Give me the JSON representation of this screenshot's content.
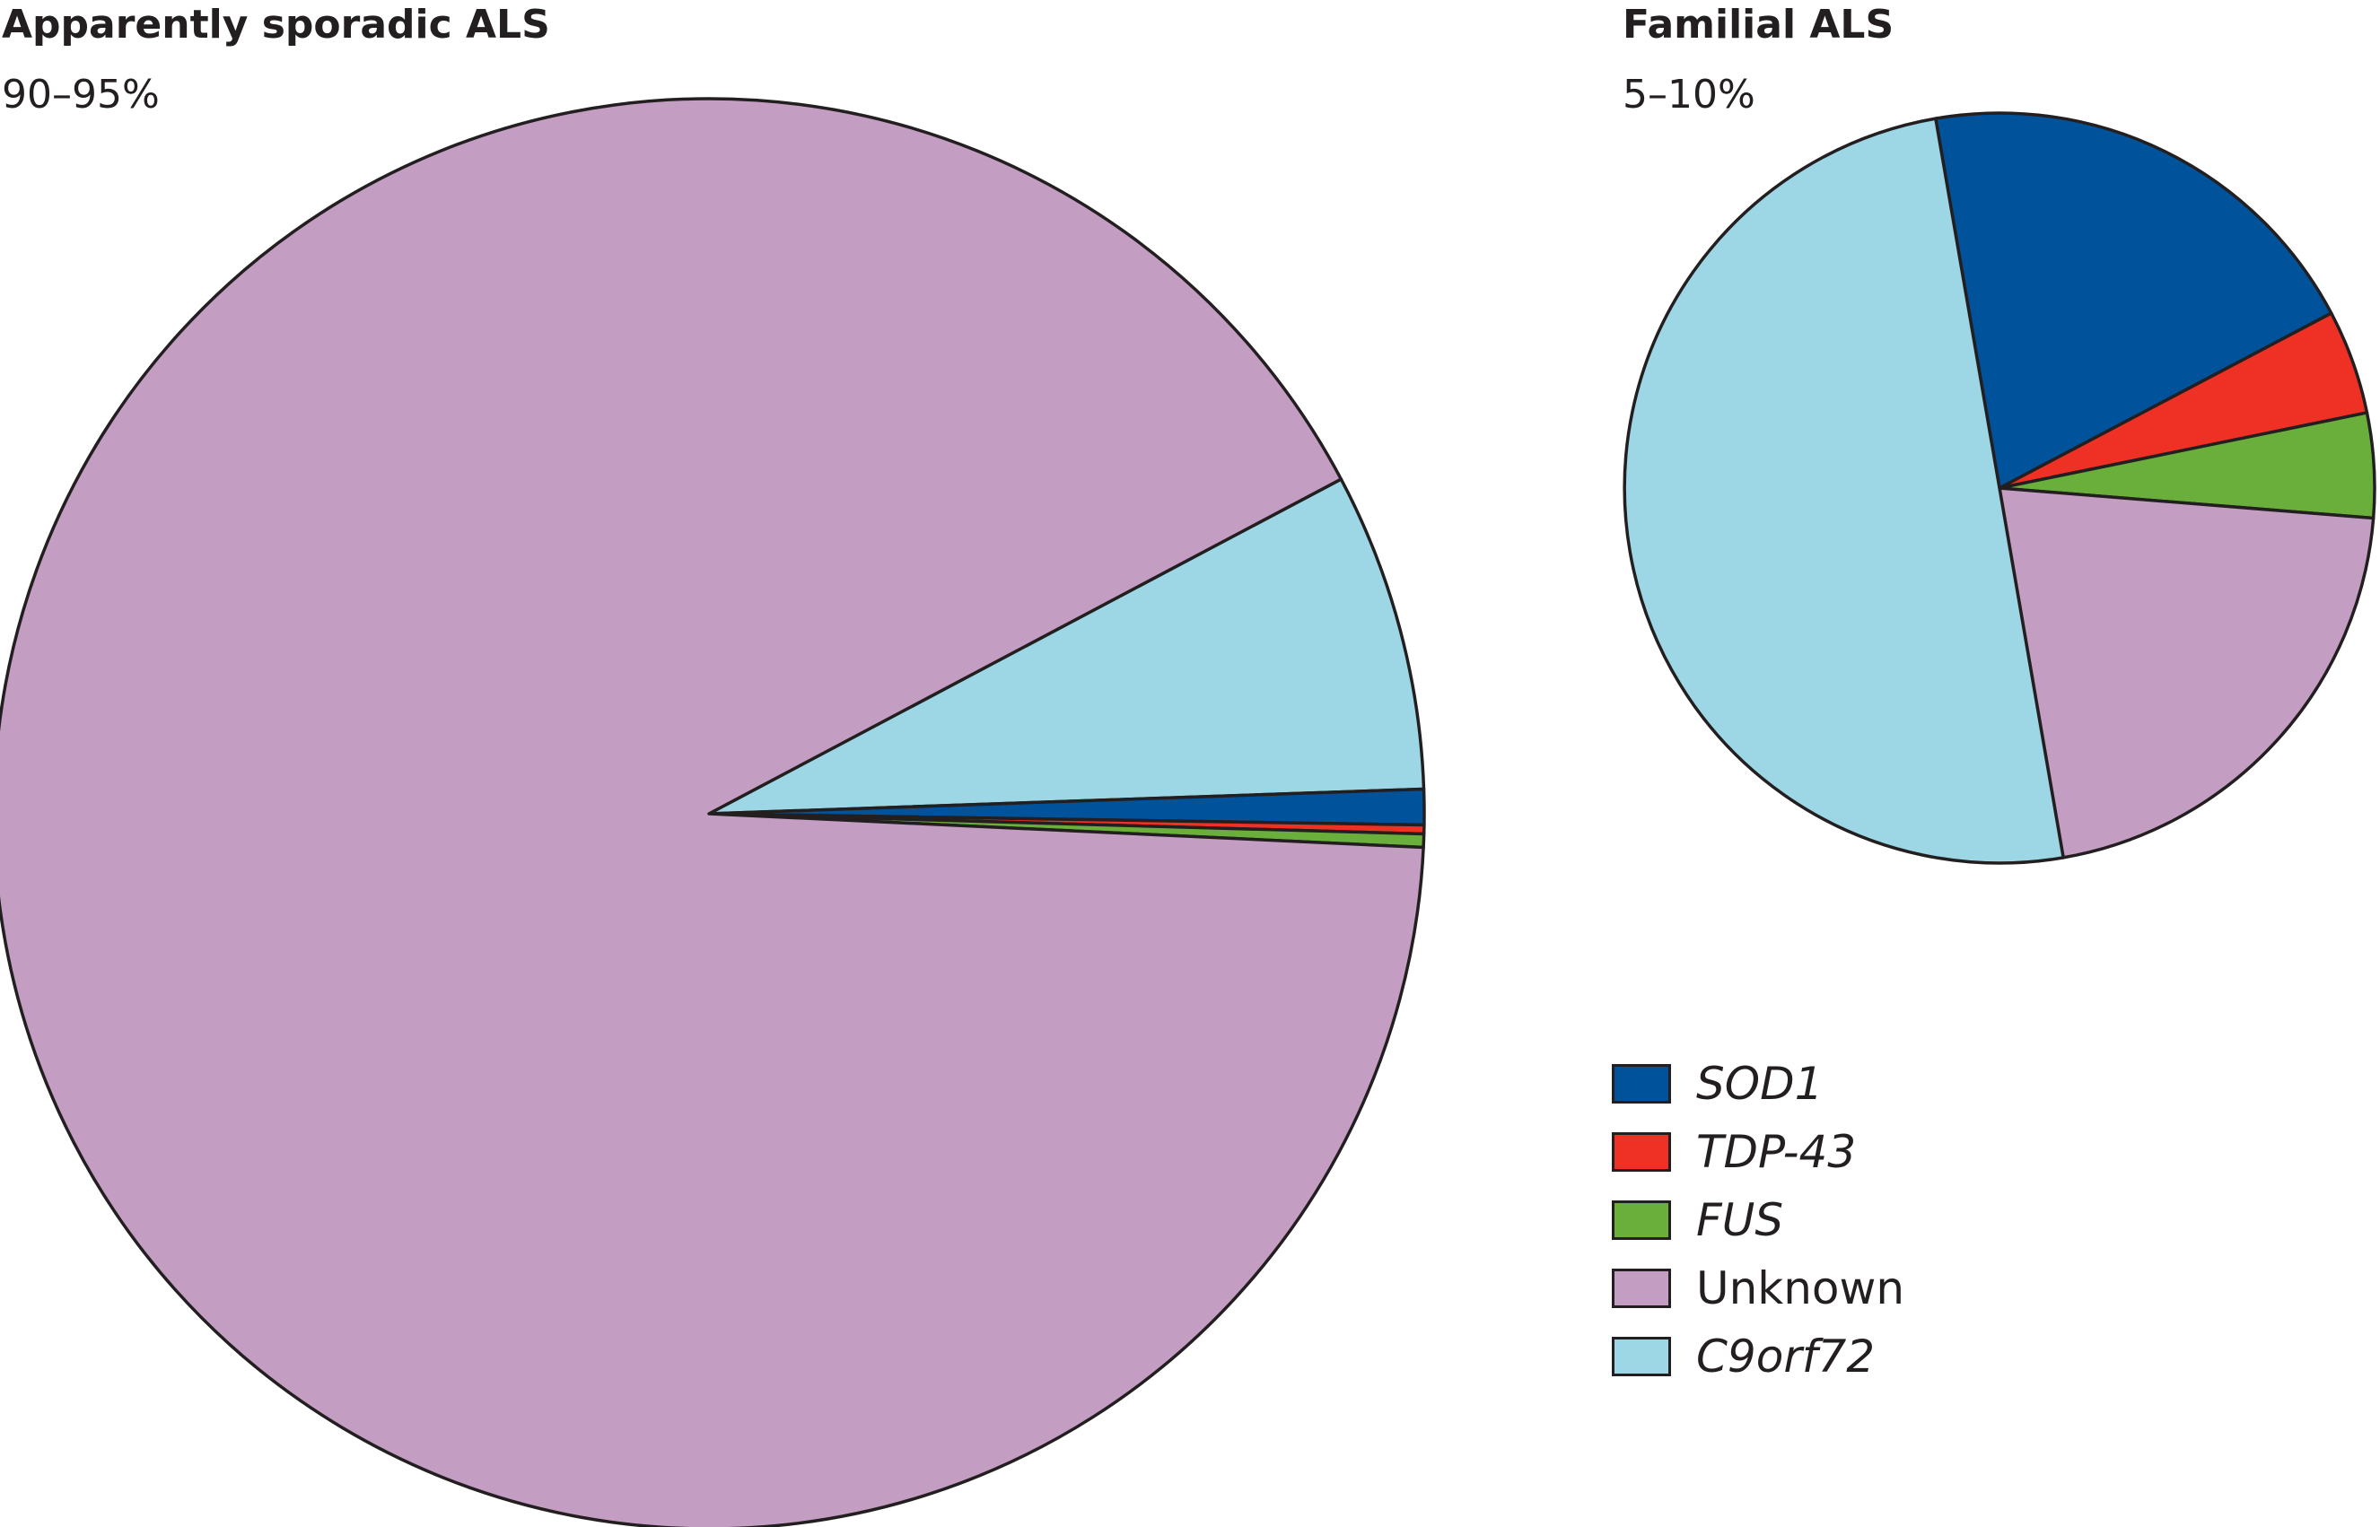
{
  "colors": {
    "SOD1": "#00539b",
    "TDP-43": "#ee3124",
    "FUS": "#6aaf3b",
    "Unknown": "#c49ec2",
    "C9orf72": "#9dd6e4",
    "outline": "#231f20"
  },
  "chart_data": [
    {
      "type": "pie",
      "title": "Apparently sporadic ALS",
      "subtitle": "90–95%",
      "slices": [
        {
          "label": "C9orf72",
          "value": 7.2
        },
        {
          "label": "SOD1",
          "value": 0.8
        },
        {
          "label": "TDP-43",
          "value": 0.2
        },
        {
          "label": "FUS",
          "value": 0.3
        },
        {
          "label": "Unknown",
          "value": 91.5
        }
      ]
    },
    {
      "type": "pie",
      "title": "Familial ALS",
      "subtitle": "5–10%",
      "slices": [
        {
          "label": "SOD1",
          "value": 20
        },
        {
          "label": "TDP-43",
          "value": 4.5
        },
        {
          "label": "FUS",
          "value": 4.5
        },
        {
          "label": "Unknown",
          "value": 21
        },
        {
          "label": "C9orf72",
          "value": 50
        }
      ]
    }
  ],
  "legend": [
    {
      "label": "SOD1",
      "italic": true
    },
    {
      "label": "TDP-43",
      "italic": true
    },
    {
      "label": "FUS",
      "italic": true
    },
    {
      "label": "Unknown",
      "italic": false
    },
    {
      "label": "C9orf72",
      "italic": true
    }
  ]
}
